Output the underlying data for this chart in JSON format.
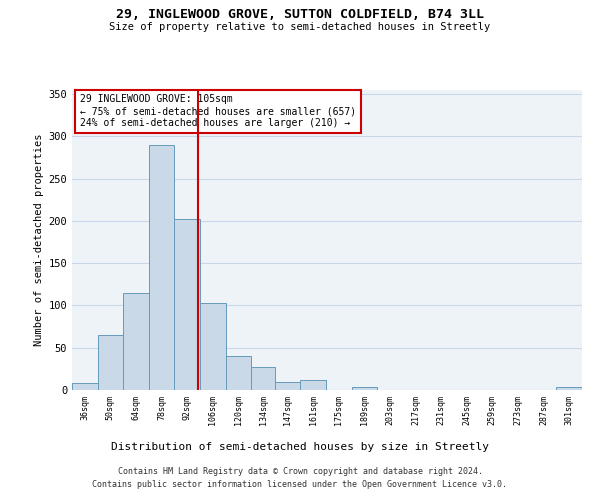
{
  "title1": "29, INGLEWOOD GROVE, SUTTON COLDFIELD, B74 3LL",
  "title2": "Size of property relative to semi-detached houses in Streetly",
  "xlabel": "Distribution of semi-detached houses by size in Streetly",
  "ylabel": "Number of semi-detached properties",
  "annotation_line1": "29 INGLEWOOD GROVE: 105sqm",
  "annotation_line2": "← 75% of semi-detached houses are smaller (657)",
  "annotation_line3": "24% of semi-detached houses are larger (210) →",
  "footer1": "Contains HM Land Registry data © Crown copyright and database right 2024.",
  "footer2": "Contains public sector information licensed under the Open Government Licence v3.0.",
  "property_size": 105,
  "bar_edges": [
    36,
    50,
    64,
    78,
    92,
    106,
    120,
    134,
    147,
    161,
    175,
    189,
    203,
    217,
    231,
    245,
    259,
    273,
    287,
    301,
    315
  ],
  "bar_values": [
    8,
    65,
    115,
    290,
    202,
    103,
    40,
    27,
    10,
    12,
    0,
    4,
    0,
    0,
    0,
    0,
    0,
    0,
    0,
    3
  ],
  "bar_color": "#c9d9e8",
  "bar_edge_color": "#6699bb",
  "marker_color": "#cc0000",
  "grid_color": "#c8d8e8",
  "bg_color": "#eef3f8",
  "ylim": [
    0,
    355
  ],
  "yticks": [
    0,
    50,
    100,
    150,
    200,
    250,
    300,
    350
  ]
}
